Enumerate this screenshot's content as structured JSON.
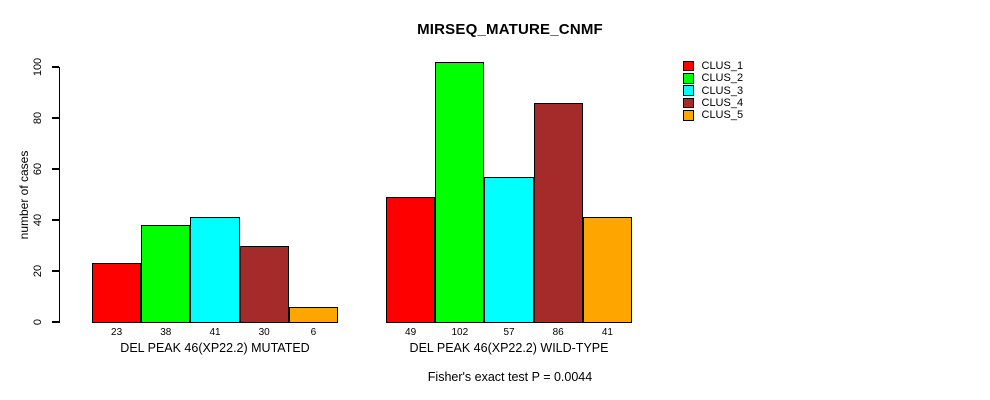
{
  "title": "MIRSEQ_MATURE_CNMF",
  "chart_data": {
    "type": "bar",
    "title": "MIRSEQ_MATURE_CNMF",
    "xlabel": "",
    "ylabel": "number of cases",
    "ylim": [
      0,
      100
    ],
    "yticks": [
      0,
      20,
      40,
      60,
      80,
      100
    ],
    "grid": false,
    "legend_position": "top-right",
    "categories": [
      "DEL PEAK 46(XP22.2) MUTATED",
      "DEL PEAK 46(XP22.2) WILD-TYPE"
    ],
    "series": [
      {
        "name": "CLUS_1",
        "color": "#FF0000",
        "values": [
          23,
          49
        ]
      },
      {
        "name": "CLUS_2",
        "color": "#00FF00",
        "values": [
          38,
          102
        ]
      },
      {
        "name": "CLUS_3",
        "color": "#00FFFF",
        "values": [
          41,
          57
        ]
      },
      {
        "name": "CLUS_4",
        "color": "#A52A2A",
        "values": [
          30,
          86
        ]
      },
      {
        "name": "CLUS_5",
        "color": "#FFA500",
        "values": [
          6,
          41
        ]
      }
    ],
    "bar_value_labels": [
      [
        23,
        38,
        41,
        30,
        6
      ],
      [
        49,
        102,
        57,
        86,
        41
      ]
    ],
    "annotation": "Fisher's exact test P = 0.0044"
  },
  "legend": {
    "items": [
      {
        "label": "CLUS_1",
        "color": "#FF0000"
      },
      {
        "label": "CLUS_2",
        "color": "#00FF00"
      },
      {
        "label": "CLUS_3",
        "color": "#00FFFF"
      },
      {
        "label": "CLUS_4",
        "color": "#A52A2A"
      },
      {
        "label": "CLUS_5",
        "color": "#FFA500"
      }
    ]
  },
  "axis_colors": {
    "line": "#000000",
    "text": "#000000"
  }
}
